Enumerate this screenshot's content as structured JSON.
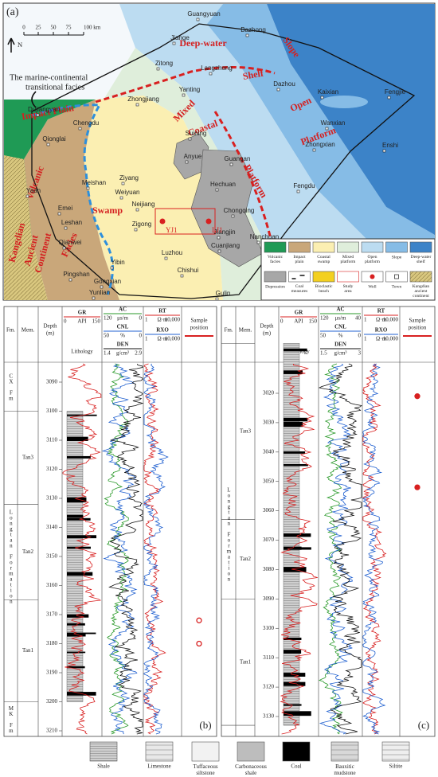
{
  "map": {
    "panel_label": "(a)",
    "scale_labels": [
      "0",
      "25",
      "50",
      "75",
      "100 km"
    ],
    "north": "N",
    "annotation": [
      "The marine-continental",
      "transitional facies"
    ],
    "facies_labels": [
      "Deep-water",
      "Slope",
      "Shelf",
      "Mixed",
      "Open",
      "Platform",
      "Impact Plain",
      "Coastal",
      "Swamp",
      "Platform",
      "Volcanic",
      "Kangdian",
      "Ancient",
      "Continent",
      "Facies"
    ],
    "cities": [
      "Guangyuan",
      "Jiange",
      "Bazhong",
      "Zitong",
      "Langzhong",
      "Yanting",
      "Dazhou",
      "Kaixian",
      "Fengjie",
      "Dujiangyan",
      "Zhongjiang",
      "Chengdu",
      "Wanxian",
      "Suining",
      "Qionglai",
      "Zhongxian",
      "Enshi",
      "Guangan",
      "Anyue",
      "Hechuan",
      "Ziyang",
      "Meishan",
      "Yaan",
      "Fengdu",
      "Weiyuan",
      "Neijiang",
      "Chongqing",
      "Emei",
      "Leshan",
      "Zigong",
      "Jiangjin",
      "Nanchuan",
      "Cuanjiang",
      "Qianwei",
      "Luzhou",
      "Pingshan",
      "Yibin",
      "Chishui",
      "Gongxian",
      "Yunlian",
      "Gulin"
    ],
    "wells": [
      "YJ1",
      "LJ1"
    ],
    "legend": [
      "Volcanic facies",
      "Impact plain",
      "Coastal swamp",
      "Mixed platform",
      "Open platform",
      "Slope",
      "Deep-water shelf",
      "Depression",
      "Coal measures",
      "Bioclastic beach",
      "Study area",
      "Well",
      "Town",
      "Kangdian ancient continent"
    ]
  },
  "wells": [
    {
      "panel_label": "(b)",
      "headers": {
        "fm": "Fm.",
        "mem": "Mem.",
        "depth": [
          "Depth",
          "(m)"
        ],
        "gr": [
          "GR",
          "0",
          "API",
          "150"
        ],
        "lithology": "Lithology",
        "ac": [
          "AC",
          "120",
          "μs/m",
          "0"
        ],
        "cnl": [
          "CNL",
          "50",
          "%",
          "0"
        ],
        "den": [
          "DEN",
          "1.4",
          "g/cm³",
          "2.9"
        ],
        "rt": [
          "RT",
          "1",
          "Ω·m",
          "10,000"
        ],
        "rxo": [
          "RXO",
          "1",
          "Ω·m",
          "10,000"
        ],
        "sample": [
          "Sample",
          "position"
        ]
      },
      "formations": [
        "CX Fm",
        "Longtan Formation",
        "MK Fm"
      ],
      "members": [
        "Tan3",
        "Tan2",
        "Tan1"
      ],
      "member_bounds": [
        3100,
        3132,
        3165,
        3200
      ],
      "depth_ticks": [
        3090,
        3100,
        3110,
        3120,
        3130,
        3140,
        3150,
        3160,
        3170,
        3180,
        3190,
        3200,
        3210
      ],
      "sample_depths": [
        3172,
        3180
      ]
    },
    {
      "panel_label": "(c)",
      "headers": {
        "fm": "Fm.",
        "mem": "Mem.",
        "depth": [
          "Depth",
          "(m)"
        ],
        "gr": [
          "GR",
          "0",
          "API",
          "150"
        ],
        "lithology": "Lithology",
        "ac": [
          "AC",
          "120",
          "μs/m",
          "40"
        ],
        "cnl": [
          "CNL",
          "50",
          "%",
          "0"
        ],
        "den": [
          "DEN",
          "1.5",
          "g/cm³",
          "3"
        ],
        "rt": [
          "RT",
          "1",
          "Ω·m",
          "10,000"
        ],
        "rxo": [
          "RXO",
          "1",
          "Ω·m",
          "10,000"
        ],
        "sample": [
          "Sample",
          "position"
        ]
      },
      "formations": [
        "Longtan Formation"
      ],
      "members": [
        "Tan3",
        "Tan2",
        "Tan1"
      ],
      "member_bounds": [
        3003,
        3063,
        3090,
        3133
      ],
      "depth_ticks": [
        3020,
        3030,
        3040,
        3050,
        3060,
        3070,
        3080,
        3090,
        3100,
        3110,
        3120,
        3130
      ],
      "sample_depths": [
        3021,
        3052
      ]
    }
  ],
  "lithology_legend": [
    "Shale",
    "Limestone",
    "Tuffaceous siltstone",
    "Carbonaceous shale",
    "Coal",
    "Bauxitic mudstone",
    "Siltite"
  ]
}
